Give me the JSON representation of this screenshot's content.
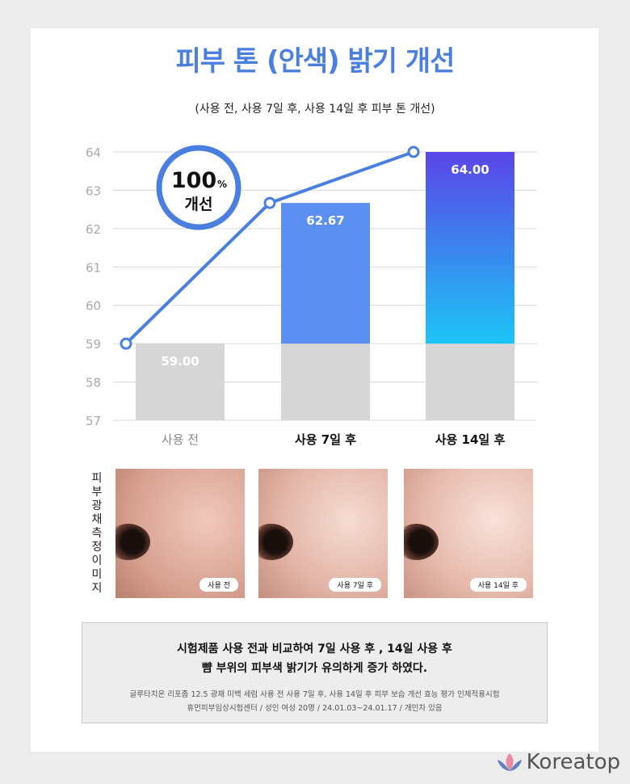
{
  "title": "피부 톤 (안색) 밝기 개선",
  "subtitle": "(사용 전, 사용 7일 후, 사용 14일 후 피부 톤 개선)",
  "badge": {
    "value": "100",
    "unit": "%",
    "label": "개선"
  },
  "chart_data": {
    "type": "bar",
    "categories": [
      "사용 전",
      "사용 7일 후",
      "사용 14일 후"
    ],
    "values": [
      59.0,
      62.67,
      64.0
    ],
    "data_labels": [
      "59.00",
      "62.67",
      "64.00"
    ],
    "ylim": [
      57,
      64
    ],
    "yticks": [
      57,
      58,
      59,
      60,
      61,
      62,
      63,
      64
    ],
    "grid": true,
    "baseline_segment": 59,
    "line_overlay": [
      59.0,
      62.67,
      64.0
    ],
    "colors": {
      "base": "#d6d6d6",
      "bar2": "#5b8ff0",
      "bar3_top": "#5b45e8",
      "bar3_bottom": "#1cc4f5",
      "line": "#4a7fe0"
    }
  },
  "photos": {
    "side_label": "피부광채측정이미지",
    "tags": [
      "사용 전",
      "사용 7일 후",
      "사용 14일 후"
    ]
  },
  "note": {
    "main_1": "시험제품 사용 전과 비교하여 7일 사용 후 , 14일 사용 후",
    "main_2": "뺨 부위의 피부색 밝기가 유의하게 증가 하였다.",
    "small_1": "글루타치온 리포좀 12.5 광채 미백 세럼 사용 전 사용 7일 후, 사용 14일 후 피부 보습 개선 효능 평가 인체적용시험",
    "small_2": "휴먼피부임상시험센터 / 성인 여성 20명 / 24.01.03~24.01.17 / 개인차 있음"
  },
  "brand": "Koreatop"
}
